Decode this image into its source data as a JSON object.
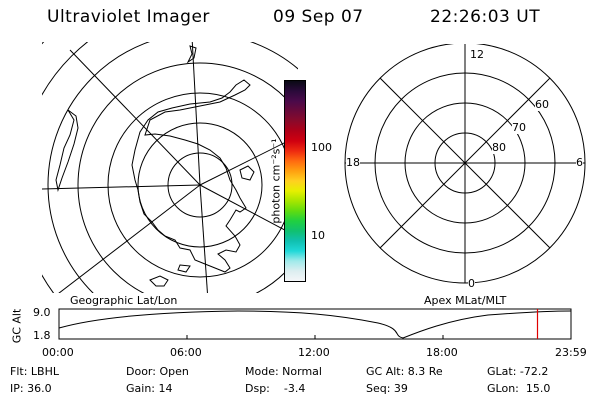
{
  "header": {
    "instrument": "Ultraviolet Imager",
    "date": "09 Sep 07",
    "time": "22:26:03 UT"
  },
  "colorbar": {
    "label": "photon cm⁻²s⁻¹",
    "ticks": [
      "100",
      "10"
    ],
    "colors": [
      "#0a0a14",
      "#2a0a3a",
      "#4a0a4a",
      "#6a0a3a",
      "#8a0a2a",
      "#b00018",
      "#d00010",
      "#ee2a10",
      "#ff6a10",
      "#ffa010",
      "#ffd020",
      "#e6f000",
      "#a6e600",
      "#60dc10",
      "#20d040",
      "#10c070",
      "#10c0b0",
      "#20d8d8",
      "#a0eaea",
      "#dceef0",
      "#f4f6f8"
    ]
  },
  "geo_panel": {
    "label": "Geographic Lat/Lon"
  },
  "mag_panel": {
    "label": "Apex MLat/MLT",
    "mlt_top": "12",
    "mlt_left": "18",
    "mlt_right": "6",
    "mlt_bottom": "0",
    "lat_60": "60",
    "lat_70": "70",
    "lat_80": "80"
  },
  "orbit_plot": {
    "ylabel": "GC Alt",
    "y_top": "9.0",
    "y_bottom": "1.8",
    "x_ticks": [
      "00:00",
      "06:00",
      "12:00",
      "18:00",
      "23:59"
    ],
    "marker_time_hours": 22.43
  },
  "info": {
    "flt": "Flt: LBHL",
    "ip": "IP: 36.0",
    "door": "Door: Open",
    "gain": "Gain: 14",
    "mode": "Mode: Normal",
    "dsp": "Dsp:    -3.4",
    "gcalt": "GC Alt: 8.3 Re",
    "seq": "Seq: 39",
    "glat": "GLat: -72.2",
    "glon": "GLon:  15.0"
  }
}
